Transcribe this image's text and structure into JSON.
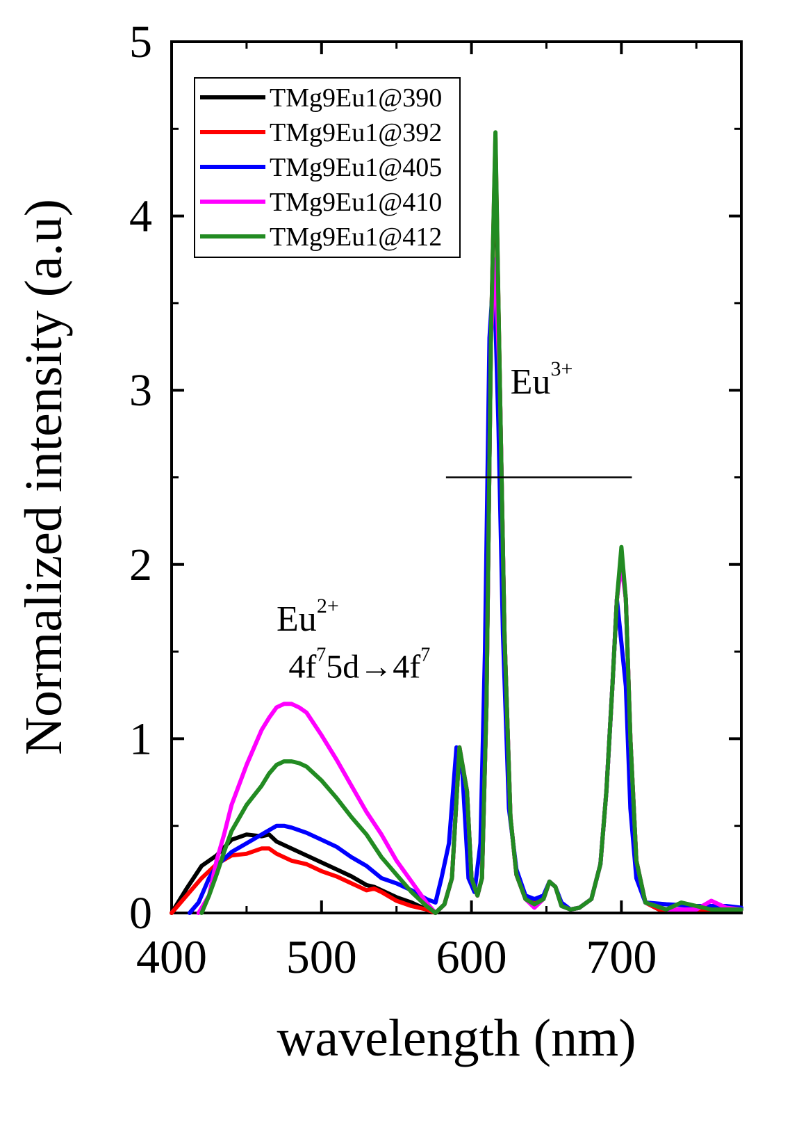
{
  "chart_data": {
    "type": "line",
    "title": "",
    "xlabel": "wavelength (nm)",
    "ylabel": "Normalized intensity (a.u)",
    "xlim": [
      400,
      780
    ],
    "ylim": [
      0,
      5
    ],
    "xticks": [
      400,
      500,
      600,
      700
    ],
    "yticks": [
      0,
      1,
      2,
      3,
      4,
      5
    ],
    "grid": false,
    "legend": "top-left",
    "series": [
      {
        "name": "TMg9Eu1@390",
        "color": "#000000",
        "x": [
          400,
          410,
          420,
          430,
          440,
          450,
          460,
          465,
          470,
          480,
          490,
          500,
          510,
          520,
          530,
          535,
          540,
          550,
          560,
          570,
          576,
          582,
          587,
          592,
          597,
          600,
          604,
          607,
          610,
          613,
          616,
          619,
          622,
          626,
          630,
          636,
          642,
          648,
          652,
          656,
          660,
          666,
          672,
          680,
          686,
          690,
          694,
          697,
          700,
          703,
          706,
          710,
          716,
          725,
          740,
          760,
          780
        ],
        "y": [
          0.0,
          0.14,
          0.27,
          0.33,
          0.42,
          0.45,
          0.44,
          0.45,
          0.41,
          0.37,
          0.33,
          0.29,
          0.25,
          0.21,
          0.16,
          0.15,
          0.13,
          0.09,
          0.06,
          0.02,
          0.0,
          0.05,
          0.2,
          0.95,
          0.7,
          0.2,
          0.1,
          0.2,
          1.2,
          3.3,
          4.4,
          3.0,
          1.6,
          0.55,
          0.22,
          0.08,
          0.06,
          0.08,
          0.18,
          0.15,
          0.05,
          0.02,
          0.03,
          0.08,
          0.28,
          0.7,
          1.3,
          1.8,
          2.05,
          1.8,
          1.0,
          0.3,
          0.06,
          0.02,
          0.02,
          0.02,
          0.02
        ]
      },
      {
        "name": "TMg9Eu1@392",
        "color": "#ff0000",
        "x": [
          400,
          410,
          420,
          430,
          440,
          450,
          460,
          465,
          470,
          480,
          490,
          500,
          510,
          520,
          530,
          535,
          540,
          550,
          560,
          570,
          576,
          582,
          587,
          592,
          597,
          600,
          604,
          607,
          610,
          613,
          616,
          619,
          622,
          626,
          630,
          636,
          642,
          648,
          652,
          656,
          660,
          666,
          672,
          680,
          686,
          690,
          694,
          697,
          700,
          703,
          706,
          710,
          716,
          725,
          740,
          760,
          780
        ],
        "y": [
          0.0,
          0.1,
          0.2,
          0.28,
          0.33,
          0.34,
          0.37,
          0.37,
          0.34,
          0.3,
          0.28,
          0.24,
          0.21,
          0.17,
          0.13,
          0.14,
          0.12,
          0.07,
          0.04,
          0.02,
          0.0,
          0.05,
          0.2,
          0.95,
          0.7,
          0.2,
          0.1,
          0.2,
          1.2,
          3.3,
          4.45,
          3.0,
          1.6,
          0.55,
          0.22,
          0.08,
          0.06,
          0.08,
          0.18,
          0.15,
          0.05,
          0.02,
          0.03,
          0.08,
          0.28,
          0.7,
          1.3,
          1.8,
          2.05,
          1.8,
          1.0,
          0.3,
          0.06,
          0.02,
          0.02,
          0.02,
          0.02
        ]
      },
      {
        "name": "TMg9Eu1@405",
        "color": "#0000ff",
        "x": [
          412,
          418,
          425,
          430,
          440,
          450,
          460,
          470,
          475,
          480,
          490,
          500,
          510,
          520,
          530,
          540,
          550,
          560,
          570,
          576,
          580,
          585,
          590,
          594,
          598,
          602,
          606,
          609,
          612,
          615,
          618,
          621,
          625,
          630,
          636,
          642,
          648,
          652,
          656,
          660,
          666,
          672,
          680,
          686,
          690,
          694,
          697,
          700,
          703,
          706,
          710,
          716,
          730,
          750,
          770,
          780
        ],
        "y": [
          0.0,
          0.06,
          0.2,
          0.27,
          0.35,
          0.4,
          0.45,
          0.5,
          0.5,
          0.49,
          0.46,
          0.42,
          0.38,
          0.32,
          0.27,
          0.2,
          0.17,
          0.13,
          0.08,
          0.06,
          0.2,
          0.4,
          0.95,
          0.8,
          0.2,
          0.12,
          0.4,
          1.5,
          3.3,
          3.7,
          2.8,
          1.6,
          0.6,
          0.25,
          0.1,
          0.08,
          0.1,
          0.18,
          0.15,
          0.06,
          0.02,
          0.03,
          0.08,
          0.28,
          0.7,
          1.3,
          1.8,
          1.55,
          1.3,
          0.6,
          0.2,
          0.06,
          0.05,
          0.04,
          0.04,
          0.03
        ]
      },
      {
        "name": "TMg9Eu1@410",
        "color": "#ff00ff",
        "x": [
          418,
          425,
          430,
          435,
          440,
          450,
          460,
          465,
          470,
          475,
          480,
          485,
          490,
          500,
          510,
          520,
          530,
          540,
          550,
          560,
          570,
          576,
          582,
          587,
          592,
          597,
          600,
          604,
          607,
          610,
          613,
          616,
          619,
          622,
          626,
          630,
          636,
          642,
          648,
          652,
          656,
          660,
          666,
          672,
          680,
          686,
          690,
          694,
          697,
          700,
          703,
          706,
          710,
          716,
          730,
          750,
          760,
          770,
          780
        ],
        "y": [
          0.0,
          0.1,
          0.3,
          0.45,
          0.62,
          0.85,
          1.05,
          1.12,
          1.18,
          1.2,
          1.2,
          1.18,
          1.15,
          1.02,
          0.88,
          0.73,
          0.58,
          0.45,
          0.3,
          0.18,
          0.06,
          0.0,
          0.05,
          0.2,
          0.95,
          0.7,
          0.2,
          0.1,
          0.2,
          1.2,
          3.3,
          3.75,
          3.0,
          1.6,
          0.55,
          0.22,
          0.08,
          0.03,
          0.08,
          0.18,
          0.15,
          0.04,
          0.02,
          0.03,
          0.08,
          0.28,
          0.7,
          1.3,
          1.8,
          2.0,
          1.8,
          1.0,
          0.3,
          0.06,
          0.02,
          0.02,
          0.07,
          0.03,
          0.02
        ]
      },
      {
        "name": "TMg9Eu1@412",
        "color": "#228b22",
        "x": [
          420,
          425,
          430,
          435,
          440,
          450,
          460,
          465,
          470,
          475,
          480,
          485,
          490,
          500,
          510,
          520,
          530,
          540,
          550,
          560,
          570,
          576,
          582,
          587,
          592,
          597,
          600,
          604,
          607,
          610,
          613,
          616,
          619,
          622,
          626,
          630,
          636,
          642,
          648,
          652,
          656,
          660,
          666,
          672,
          680,
          686,
          690,
          694,
          697,
          700,
          703,
          706,
          710,
          716,
          730,
          740,
          760,
          780
        ],
        "y": [
          0.0,
          0.1,
          0.22,
          0.35,
          0.47,
          0.62,
          0.73,
          0.8,
          0.85,
          0.87,
          0.87,
          0.86,
          0.84,
          0.76,
          0.66,
          0.55,
          0.45,
          0.32,
          0.22,
          0.12,
          0.04,
          0.0,
          0.05,
          0.2,
          0.95,
          0.7,
          0.2,
          0.1,
          0.2,
          1.2,
          3.3,
          4.48,
          3.0,
          1.6,
          0.55,
          0.22,
          0.08,
          0.05,
          0.08,
          0.18,
          0.15,
          0.04,
          0.02,
          0.03,
          0.08,
          0.28,
          0.7,
          1.3,
          1.8,
          2.1,
          1.8,
          1.0,
          0.3,
          0.06,
          0.02,
          0.06,
          0.02,
          0.02
        ]
      }
    ],
    "annotations": [
      {
        "id": "eu3",
        "base": "Eu",
        "sup": "3+",
        "x": 626,
        "y": 2.98
      },
      {
        "id": "eu2",
        "base": "Eu",
        "sup": "2+",
        "x": 470,
        "y": 1.62
      },
      {
        "id": "transition",
        "parts": [
          "4f",
          "7",
          "5d→4f",
          "7"
        ],
        "x": 478,
        "y": 1.35
      }
    ],
    "reference_line": {
      "x_start": 583,
      "x_end": 707,
      "y": 2.5
    }
  }
}
